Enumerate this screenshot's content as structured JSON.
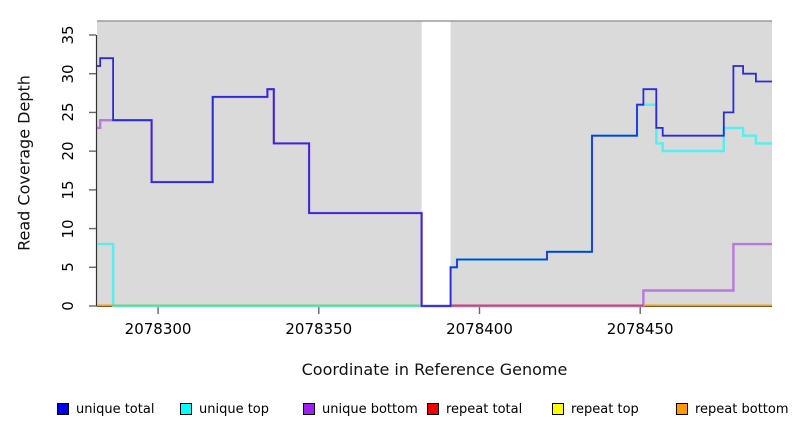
{
  "figure": {
    "background": "#FFFFFF",
    "plot_bg": "#DADADA",
    "top_border_color": "#9B9B9B",
    "axis_line_color": "#333333",
    "tick_color": "#666666",
    "text_color": "#000000"
  },
  "chart_data": {
    "type": "line",
    "subtype": "step-coverage",
    "title": "",
    "xlabel": "Coordinate in Reference Genome",
    "ylabel": "Read Coverage Depth",
    "xlim": [
      2078281,
      2078491
    ],
    "ylim": [
      0,
      37
    ],
    "x_ticks": [
      2078300,
      2078350,
      2078400,
      2078450
    ],
    "y_ticks": [
      0,
      5,
      10,
      15,
      20,
      25,
      30,
      35
    ],
    "grid": false,
    "legend_position": "bottom",
    "no_coverage_gap_x": [
      2078382,
      2078391
    ],
    "series": [
      {
        "name": "unique total",
        "legend_color": "#0000EE",
        "line_color": "#2B2BD9",
        "line_width": 1.8,
        "steps": [
          [
            2078281,
            31
          ],
          [
            2078282,
            32
          ],
          [
            2078286,
            24
          ],
          [
            2078298,
            16
          ],
          [
            2078317,
            27
          ],
          [
            2078334,
            28
          ],
          [
            2078336,
            21
          ],
          [
            2078347,
            12
          ],
          [
            2078382,
            0
          ],
          [
            2078391,
            5
          ],
          [
            2078393,
            6
          ],
          [
            2078421,
            7
          ],
          [
            2078435,
            22
          ],
          [
            2078449,
            26
          ],
          [
            2078451,
            28
          ],
          [
            2078455,
            23
          ],
          [
            2078457,
            22
          ],
          [
            2078476,
            25
          ],
          [
            2078479,
            31
          ],
          [
            2078482,
            30
          ],
          [
            2078486,
            29
          ],
          [
            2078491,
            29
          ]
        ]
      },
      {
        "name": "unique top",
        "legend_color": "#00FFFF",
        "line_color": "#55EFEF",
        "line_width": 2.4,
        "steps": [
          [
            2078281,
            8
          ],
          [
            2078286,
            0
          ],
          [
            2078391,
            5
          ],
          [
            2078393,
            6
          ],
          [
            2078421,
            7
          ],
          [
            2078435,
            22
          ],
          [
            2078449,
            26
          ],
          [
            2078455,
            21
          ],
          [
            2078457,
            20
          ],
          [
            2078476,
            23
          ],
          [
            2078482,
            22
          ],
          [
            2078486,
            21
          ],
          [
            2078491,
            21
          ]
        ]
      },
      {
        "name": "unique bottom",
        "legend_color": "#A020F0",
        "line_color": "#B878DC",
        "line_width": 2.4,
        "steps": [
          [
            2078281,
            23
          ],
          [
            2078282,
            24
          ],
          [
            2078298,
            16
          ],
          [
            2078317,
            27
          ],
          [
            2078334,
            28
          ],
          [
            2078336,
            21
          ],
          [
            2078347,
            12
          ],
          [
            2078382,
            0
          ],
          [
            2078451,
            2
          ],
          [
            2078479,
            8
          ],
          [
            2078491,
            8
          ]
        ]
      },
      {
        "name": "repeat total",
        "legend_color": "#EE0000",
        "line_color": "#CC4466",
        "line_width": 1.9,
        "steps": [
          [
            2078281,
            0
          ],
          [
            2078491,
            0
          ]
        ]
      },
      {
        "name": "repeat top",
        "legend_color": "#FFFF00",
        "line_color": "#FFFF00",
        "line_width": 1.9,
        "steps": [
          [
            2078281,
            0
          ],
          [
            2078491,
            0
          ]
        ]
      },
      {
        "name": "repeat bottom",
        "legend_color": "#FF9900",
        "line_color": "#FF9D0B",
        "line_width": 1.9,
        "steps": [
          [
            2078281,
            0
          ],
          [
            2078491,
            0
          ]
        ]
      }
    ],
    "baseline_render_segments": [
      {
        "x0": 2078281,
        "x1": 2078286,
        "color": "#FF9D0B"
      },
      {
        "x0": 2078286,
        "x1": 2078382,
        "color": "#7CCD7C"
      },
      {
        "x0": 2078391,
        "x1": 2078451,
        "color": "#CC4466"
      },
      {
        "x0": 2078451,
        "x1": 2078491,
        "color": "#FF9D0B"
      }
    ]
  },
  "legend": {
    "items": [
      {
        "label": "unique total",
        "color": "#0000EE"
      },
      {
        "label": "unique top",
        "color": "#00FFFF"
      },
      {
        "label": "unique bottom",
        "color": "#A020F0"
      },
      {
        "label": "repeat total",
        "color": "#EE0000"
      },
      {
        "label": "repeat top",
        "color": "#FFFF00"
      },
      {
        "label": "repeat bottom",
        "color": "#FF9900"
      }
    ]
  }
}
